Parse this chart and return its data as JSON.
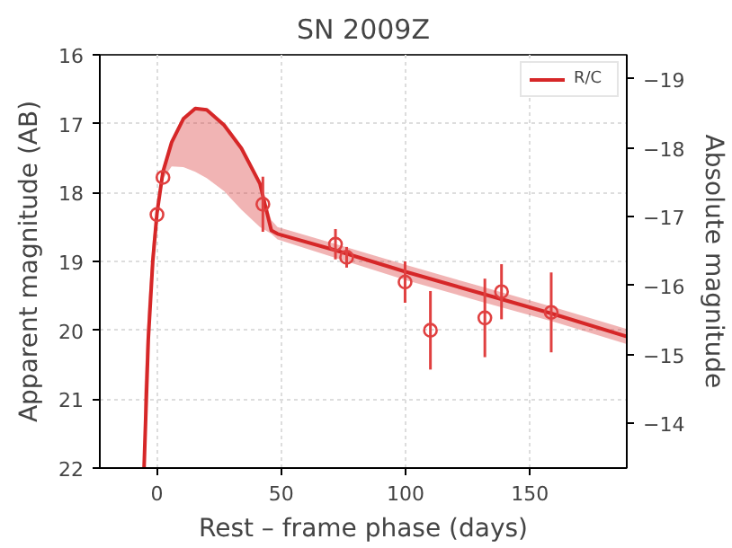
{
  "chart_data": {
    "type": "line",
    "title": "SN 2009Z",
    "xlabel": "Rest – frame phase (days)",
    "ylabel": "Apparent magnitude (AB)",
    "y2label": "Absolute magnitude",
    "xlim": [
      -23,
      189
    ],
    "ylim": [
      22,
      16
    ],
    "xticks": [
      0,
      50,
      100,
      150
    ],
    "yticks": [
      16,
      17,
      18,
      19,
      20,
      21,
      22
    ],
    "y2lim": [
      -13.35,
      -19.35
    ],
    "y2ticks": [
      -19,
      -18,
      -17,
      -16,
      -15,
      -14
    ],
    "grid": true,
    "legend": "top right",
    "series": [
      {
        "name": "R/C",
        "color": "#d62728",
        "line_style": "solid",
        "marker": "none",
        "x": [
          -5.2,
          -3.5,
          -1.7,
          0,
          2.4,
          5.9,
          10.6,
          15.4,
          20,
          27,
          34,
          41.4,
          46,
          48.5,
          72,
          100,
          130,
          160,
          189
        ],
        "values": [
          22,
          20.13,
          19,
          18.3,
          17.7,
          17.27,
          16.93,
          16.78,
          16.8,
          17.02,
          17.36,
          17.87,
          18.55,
          18.6,
          18.84,
          19.15,
          19.46,
          19.77,
          20.09
        ],
        "lower": [
          20.9,
          19.6,
          18.7,
          18.2,
          17.7,
          17.27,
          16.93,
          16.78,
          16.8,
          17.02,
          17.36,
          17.87,
          18.4,
          18.5,
          18.75,
          19.05,
          19.36,
          19.67,
          19.98
        ],
        "upper": [
          22,
          20.13,
          19,
          18.35,
          17.8,
          17.62,
          17.63,
          17.7,
          17.79,
          17.98,
          18.25,
          18.5,
          18.6,
          18.68,
          18.95,
          19.27,
          19.58,
          19.88,
          20.2
        ]
      },
      {
        "type": "scatter",
        "color": "#e04040",
        "marker": "circle",
        "x": [
          0,
          2.4,
          42.6,
          71.8,
          76.3,
          99.8,
          110,
          131.9,
          138.6,
          158.6
        ],
        "values": [
          18.32,
          17.78,
          18.17,
          18.75,
          18.94,
          19.3,
          20.0,
          19.82,
          19.44,
          19.74
        ],
        "errors": [
          null,
          null,
          0.4,
          0.22,
          0.15,
          0.3,
          0.57,
          0.57,
          0.4,
          0.58
        ]
      }
    ]
  }
}
